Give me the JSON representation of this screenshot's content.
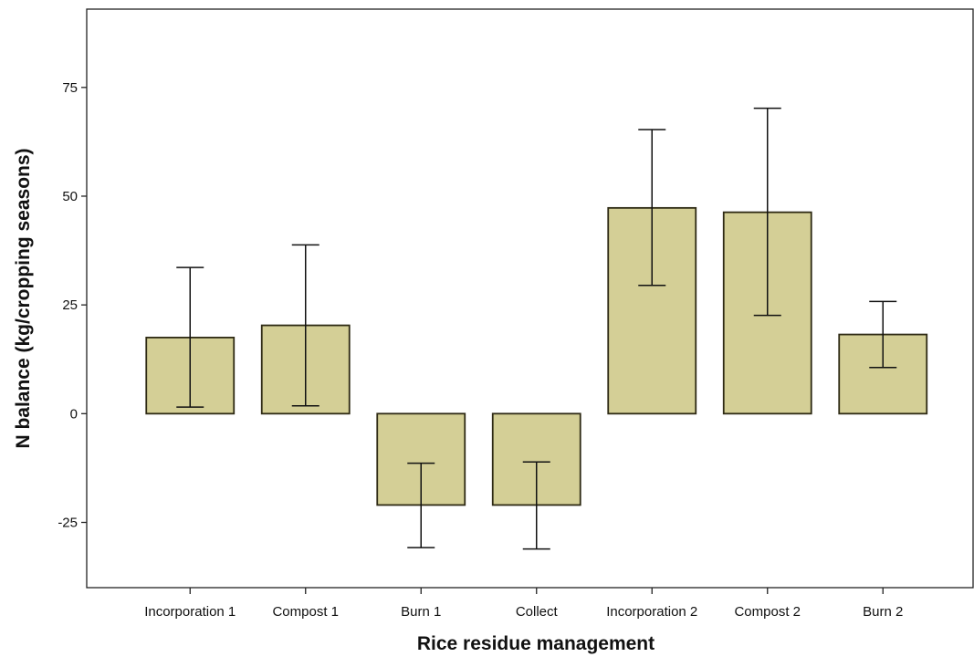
{
  "chart_data": {
    "type": "bar",
    "xlabel": "Rice residue management",
    "ylabel": "N balance (kg/cropping seasons)",
    "categories": [
      "Incorporation 1",
      "Compost 1",
      "Burn 1",
      "Collect",
      "Incorporation 2",
      "Compost 2",
      "Burn 2"
    ],
    "values": [
      17.5,
      20.3,
      -21.0,
      -21.0,
      47.3,
      46.3,
      18.2
    ],
    "error_low": [
      1.5,
      1.8,
      -30.8,
      -31.1,
      29.5,
      22.6,
      10.6
    ],
    "error_high": [
      33.6,
      38.8,
      -11.4,
      -11.1,
      65.3,
      70.2,
      25.8
    ],
    "ylim": [
      -40,
      93
    ],
    "yticks": [
      -25,
      0,
      25,
      50,
      75
    ],
    "ytick_labels": [
      "-25",
      "0",
      "25",
      "50",
      "75"
    ],
    "grid": false,
    "colors": {
      "bar_fill": "#d4cf96",
      "bar_stroke": "#2e2a14",
      "axis": "#222222"
    }
  }
}
